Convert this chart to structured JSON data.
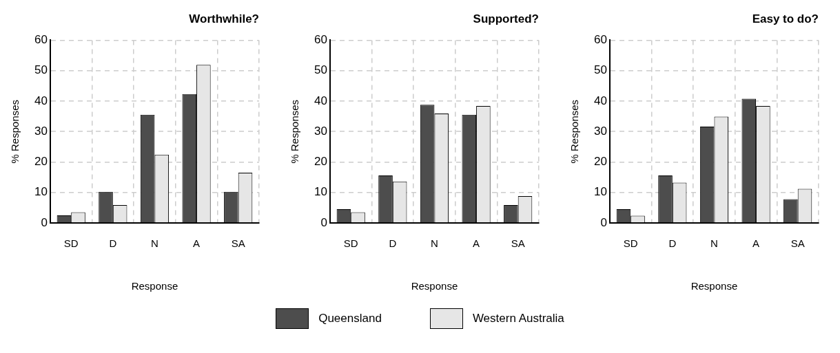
{
  "chart_data": [
    {
      "type": "bar",
      "title": "Worthwhile?",
      "xlabel": "Response",
      "ylabel": "% Responses",
      "categories": [
        "SD",
        "D",
        "N",
        "A",
        "SA"
      ],
      "series": [
        {
          "name": "Queensland",
          "color": "#4d4d4d",
          "values": [
            2.5,
            10.2,
            35.5,
            42.3,
            10.2
          ]
        },
        {
          "name": "Western Australia",
          "color": "#e6e6e6",
          "values": [
            3.5,
            5.9,
            22.4,
            51.9,
            16.5
          ]
        }
      ],
      "ylim": [
        0,
        60
      ],
      "yticks": [
        0,
        10,
        20,
        30,
        40,
        50,
        60
      ],
      "grid": true,
      "legend": "bottom"
    },
    {
      "type": "bar",
      "title": "Supported?",
      "xlabel": "Response",
      "ylabel": "% Responses",
      "categories": [
        "SD",
        "D",
        "N",
        "A",
        "SA"
      ],
      "series": [
        {
          "color": "#4d4d4d",
          "values": [
            4.5,
            15.6,
            38.8,
            35.5,
            5.9
          ]
        },
        {
          "color": "#e6e6e6",
          "values": [
            3.5,
            13.6,
            35.9,
            38.4,
            8.8
          ]
        }
      ],
      "ylim": [
        0,
        60
      ],
      "yticks": [
        0,
        10,
        20,
        30,
        40,
        50,
        60
      ],
      "grid": true
    },
    {
      "type": "bar",
      "title": "Easy to do?",
      "xlabel": "Response",
      "ylabel": "% Responses",
      "categories": [
        "SD",
        "D",
        "N",
        "A",
        "SA"
      ],
      "series": [
        {
          "color": "#4d4d4d",
          "values": [
            4.5,
            15.6,
            31.6,
            40.8,
            7.8
          ]
        },
        {
          "color": "#e6e6e6",
          "values": [
            2.4,
            13.2,
            34.9,
            38.4,
            11.2
          ]
        }
      ],
      "ylim": [
        0,
        60
      ],
      "yticks": [
        0,
        10,
        20,
        30,
        40,
        50,
        60
      ],
      "grid": true
    }
  ]
}
